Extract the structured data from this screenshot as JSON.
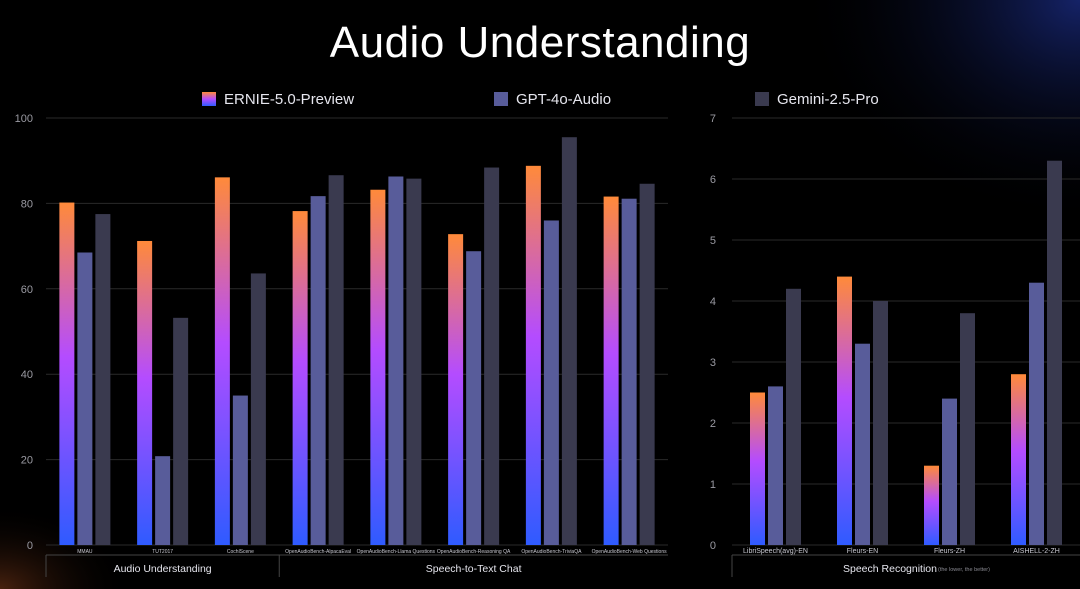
{
  "title": "Audio Understanding",
  "colors": {
    "ernie_top": "#ff8a3a",
    "ernie_mid": "#b44cff",
    "ernie_bottom": "#2f5bff",
    "gpt": "#585c9a",
    "gemini": "#3a3a4f",
    "grid": "#2a2a2a",
    "axis_text": "#9a9aa2"
  },
  "legend": [
    {
      "label": "ERNIE-5.0-Preview",
      "key": "ernie"
    },
    {
      "label": "GPT-4o-Audio",
      "key": "gpt"
    },
    {
      "label": "Gemini-2.5-Pro",
      "key": "gemini"
    }
  ],
  "chart_data": [
    {
      "type": "bar",
      "title": "",
      "ylim": [
        0,
        100
      ],
      "yticks": [
        0,
        20,
        40,
        60,
        80,
        100
      ],
      "categories": [
        "MMAU",
        "TUT2017",
        "CochlScene",
        "OpenAudioBench-AlpacaEval",
        "OpenAudioBench-Llama Questions",
        "OpenAudioBench-Reasoning QA",
        "OpenAudioBench-TriviaQA",
        "OpenAudioBench-Web Questions"
      ],
      "groups": [
        {
          "label": "Audio Understanding",
          "span": [
            0,
            2
          ]
        },
        {
          "label": "Speech-to-Text Chat",
          "span": [
            3,
            7
          ]
        }
      ],
      "series": [
        {
          "name": "ERNIE-5.0-Preview",
          "values": [
            80.2,
            71.2,
            86.1,
            78.2,
            83.2,
            72.8,
            88.8,
            81.6
          ]
        },
        {
          "name": "GPT-4o-Audio",
          "values": [
            68.5,
            20.8,
            35.0,
            81.7,
            86.3,
            68.8,
            76.0,
            81.1
          ]
        },
        {
          "name": "Gemini-2.5-Pro",
          "values": [
            77.5,
            53.2,
            63.6,
            86.6,
            85.8,
            88.4,
            95.5,
            84.6
          ]
        }
      ]
    },
    {
      "type": "bar",
      "title": "",
      "ylim": [
        0,
        7
      ],
      "yticks": [
        0,
        1,
        2,
        3,
        4,
        5,
        6,
        7
      ],
      "categories": [
        "LibriSpeech(avg)-EN",
        "Fleurs-EN",
        "Fleurs-ZH",
        "AISHELL-2-ZH"
      ],
      "groups": [
        {
          "label": "Speech Recognition",
          "note": "(the lower, the better)",
          "span": [
            0,
            3
          ]
        }
      ],
      "series": [
        {
          "name": "ERNIE-5.0-Preview",
          "values": [
            2.5,
            4.4,
            1.3,
            2.8
          ]
        },
        {
          "name": "GPT-4o-Audio",
          "values": [
            2.6,
            3.3,
            2.4,
            4.3
          ]
        },
        {
          "name": "Gemini-2.5-Pro",
          "values": [
            4.2,
            4.0,
            3.8,
            6.3
          ]
        }
      ]
    }
  ]
}
